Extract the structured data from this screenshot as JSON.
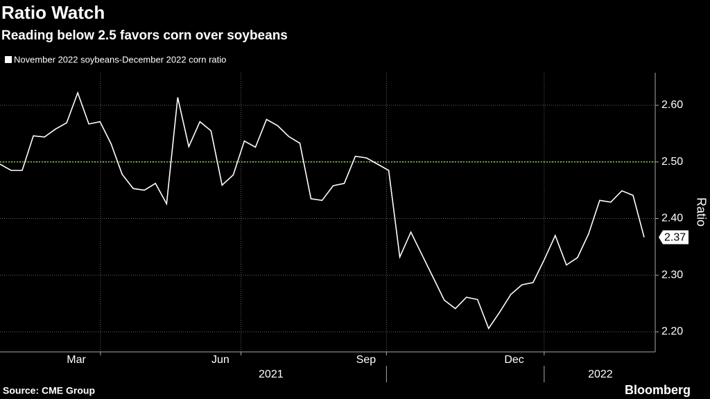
{
  "chart_data": {
    "type": "line",
    "title": "Ratio Watch",
    "subtitle": "Reading below 2.5 favors corn over soybeans",
    "source": "Source: CME Group",
    "brand": "Bloomberg",
    "y_label": "Ratio",
    "categories": [
      null,
      null,
      null,
      null,
      null,
      null,
      null,
      null,
      null,
      null,
      null,
      null,
      null,
      null,
      null,
      null,
      null,
      null,
      null,
      null,
      null,
      null,
      null,
      null,
      null,
      null,
      null,
      null,
      null,
      null,
      null,
      null,
      null,
      null,
      null,
      null,
      null,
      null,
      null,
      null,
      null,
      null,
      null,
      null,
      null,
      null,
      null,
      null,
      null,
      null,
      null,
      null,
      null,
      null,
      null,
      null,
      null,
      null,
      null
    ],
    "series": [
      {
        "name": "November 2022 soybeans-December 2022 corn ratio",
        "color": "#ffffff",
        "values": [
          2.496,
          2.485,
          2.485,
          2.546,
          2.544,
          2.558,
          2.569,
          2.622,
          2.567,
          2.571,
          2.532,
          2.478,
          2.453,
          2.45,
          2.462,
          2.426,
          2.614,
          2.527,
          2.571,
          2.555,
          2.459,
          2.477,
          2.537,
          2.526,
          2.575,
          2.564,
          2.545,
          2.533,
          2.435,
          2.432,
          2.458,
          2.462,
          2.51,
          2.507,
          2.496,
          2.485,
          2.332,
          2.376,
          2.336,
          2.296,
          2.256,
          2.241,
          2.261,
          2.257,
          2.206,
          2.235,
          2.266,
          2.283,
          2.287,
          2.327,
          2.37,
          2.318,
          2.331,
          2.373,
          2.432,
          2.429,
          2.449,
          2.441,
          2.367
        ],
        "value_labels": [
          null,
          null,
          null,
          null,
          null,
          null,
          null,
          null,
          null,
          null,
          null,
          null,
          null,
          null,
          null,
          null,
          null,
          null,
          null,
          null,
          null,
          null,
          null,
          null,
          null,
          null,
          null,
          null,
          null,
          null,
          null,
          null,
          null,
          null,
          null,
          null,
          null,
          null,
          null,
          null,
          null,
          null,
          null,
          null,
          null,
          null,
          null,
          null,
          null,
          null,
          null,
          null,
          null,
          null,
          null,
          null,
          null,
          null,
          "2.37"
        ]
      }
    ],
    "xlim": [
      0,
      59
    ],
    "xticks": [
      {
        "value": 6.87,
        "label": "Mar"
      },
      {
        "value": 19.85,
        "label": "Jun"
      },
      {
        "value": 32.96,
        "label": "Sep"
      },
      {
        "value": 46.3,
        "label": "Dec"
      }
    ],
    "xgrid": [
      9.05,
      21.7,
      34.8,
      49
    ],
    "xgroups": [
      {
        "value": 24.4,
        "label": "2021"
      },
      {
        "value": 54.06,
        "label": "2022"
      }
    ],
    "ylim": [
      2.1645,
      2.6575
    ],
    "yticks": [
      {
        "value": 2.2,
        "label": "2.20"
      },
      {
        "value": 2.3,
        "label": "2.30"
      },
      {
        "value": 2.4,
        "label": "2.40"
      },
      {
        "value": 2.5,
        "label": "2.50"
      },
      {
        "value": 2.6,
        "label": "2.60"
      }
    ],
    "reference_line": {
      "value": 2.5,
      "color": "#8bc34a"
    },
    "grid": true
  }
}
